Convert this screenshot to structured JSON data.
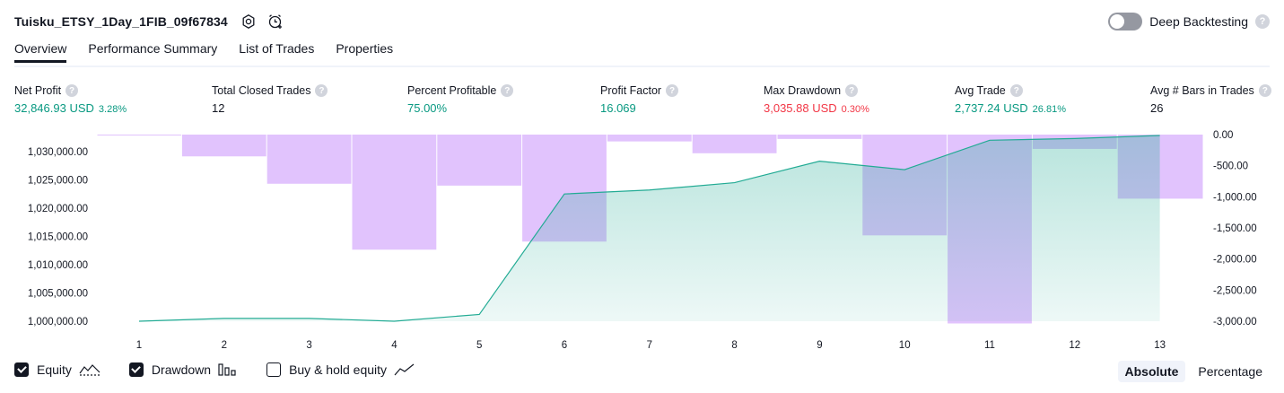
{
  "header": {
    "title": "Tuisku_ETSY_1Day_1FIB_09f67834",
    "deep_backtesting_label": "Deep Backtesting",
    "deep_backtesting_on": false
  },
  "tabs": [
    {
      "label": "Overview",
      "active": true
    },
    {
      "label": "Performance Summary",
      "active": false
    },
    {
      "label": "List of Trades",
      "active": false
    },
    {
      "label": "Properties",
      "active": false
    }
  ],
  "metrics": {
    "net_profit": {
      "label": "Net Profit",
      "value": "32,846.93 USD",
      "pct": "3.28%"
    },
    "total_closed_trades": {
      "label": "Total Closed Trades",
      "value": "12"
    },
    "percent_profitable": {
      "label": "Percent Profitable",
      "value": "75.00%"
    },
    "profit_factor": {
      "label": "Profit Factor",
      "value": "16.069"
    },
    "max_drawdown": {
      "label": "Max Drawdown",
      "value": "3,035.88 USD",
      "pct": "0.30%"
    },
    "avg_trade": {
      "label": "Avg Trade",
      "value": "2,737.24 USD",
      "pct": "26.81%"
    },
    "avg_bars": {
      "label": "Avg # Bars in Trades",
      "value": "26"
    }
  },
  "colors": {
    "positive": "#089981",
    "negative": "#f23645",
    "equity_line": "#22ab94",
    "drawdown_bar": "#e1c3fd"
  },
  "chart_data": {
    "type": "line",
    "x": [
      1,
      2,
      3,
      4,
      5,
      6,
      7,
      8,
      9,
      10,
      11,
      12,
      13
    ],
    "left_axis_ticks": [
      "1,030,000.00",
      "1,025,000.00",
      "1,020,000.00",
      "1,015,000.00",
      "1,010,000.00",
      "1,005,000.00",
      "1,000,000.00"
    ],
    "right_axis_ticks": [
      "0.00",
      "-500.00",
      "-1,000.00",
      "-1,500.00",
      "-2,000.00",
      "-2,500.00",
      "-3,000.00"
    ],
    "ylim_left": [
      1000000,
      1033000
    ],
    "ylim_right": [
      -3000,
      0
    ],
    "series": [
      {
        "name": "Equity",
        "axis": "left",
        "values": [
          1000000,
          1000500,
          1000500,
          1000000,
          1001200,
          1022500,
          1023200,
          1024500,
          1028300,
          1026800,
          1032000,
          1032300,
          1032847
        ]
      },
      {
        "name": "Drawdown",
        "axis": "right",
        "values": [
          -10,
          -350,
          -790,
          -1850,
          -820,
          -1720,
          -110,
          -300,
          -70,
          -1620,
          -3036,
          -230,
          -1030
        ]
      }
    ]
  },
  "legend": {
    "equity": {
      "label": "Equity",
      "checked": true
    },
    "drawdown": {
      "label": "Drawdown",
      "checked": true
    },
    "buy_hold": {
      "label": "Buy & hold equity",
      "checked": false
    }
  },
  "mode": {
    "absolute": "Absolute",
    "percentage": "Percentage",
    "selected": "absolute"
  }
}
